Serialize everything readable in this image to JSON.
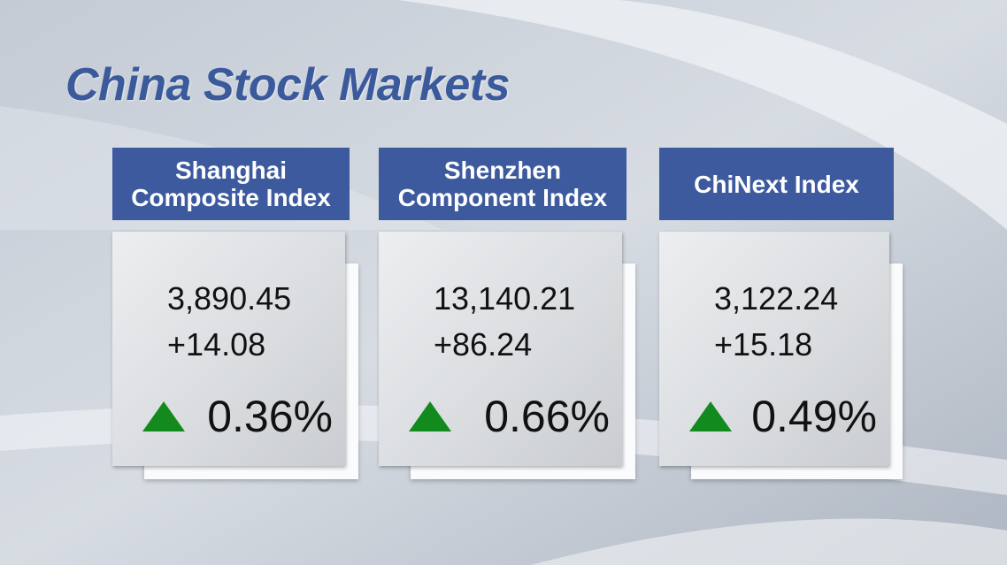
{
  "title": "China Stock Markets",
  "cards": [
    {
      "name_lines": [
        "Shanghai",
        "Composite Index"
      ],
      "value": "3,890.45",
      "change": "+14.08",
      "percent": "0.36%"
    },
    {
      "name_lines": [
        "Shenzhen",
        "Component Index"
      ],
      "value": "13,140.21",
      "change": "+86.24",
      "percent": "0.66%"
    },
    {
      "name_lines": [
        "ChiNext Index"
      ],
      "value": "3,122.24",
      "change": "+15.18",
      "percent": "0.49%"
    }
  ]
}
